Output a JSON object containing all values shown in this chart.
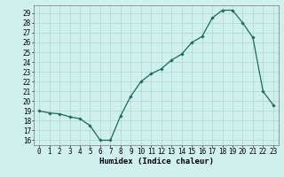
{
  "x": [
    0,
    1,
    2,
    3,
    4,
    5,
    6,
    7,
    8,
    9,
    10,
    11,
    12,
    13,
    14,
    15,
    16,
    17,
    18,
    19,
    20,
    21,
    22,
    23
  ],
  "y": [
    19.0,
    18.8,
    18.7,
    18.4,
    18.2,
    17.5,
    16.0,
    16.0,
    18.5,
    20.5,
    22.0,
    22.8,
    23.3,
    24.2,
    24.8,
    26.0,
    26.6,
    28.5,
    29.3,
    29.3,
    28.0,
    26.5,
    21.0,
    19.6
  ],
  "xlabel": "Humidex (Indice chaleur)",
  "yticks": [
    16,
    17,
    18,
    19,
    20,
    21,
    22,
    23,
    24,
    25,
    26,
    27,
    28,
    29
  ],
  "xticks": [
    0,
    1,
    2,
    3,
    4,
    5,
    6,
    7,
    8,
    9,
    10,
    11,
    12,
    13,
    14,
    15,
    16,
    17,
    18,
    19,
    20,
    21,
    22,
    23
  ],
  "line_color": "#1a6b5a",
  "marker": "D",
  "marker_size": 1.8,
  "bg_color": "#cff0ec",
  "grid_color": "#aad8d0",
  "xlabel_fontsize": 6.5,
  "tick_fontsize": 5.5,
  "xlim_min": -0.5,
  "xlim_max": 23.5,
  "ylim_min": 15.5,
  "ylim_max": 29.8
}
